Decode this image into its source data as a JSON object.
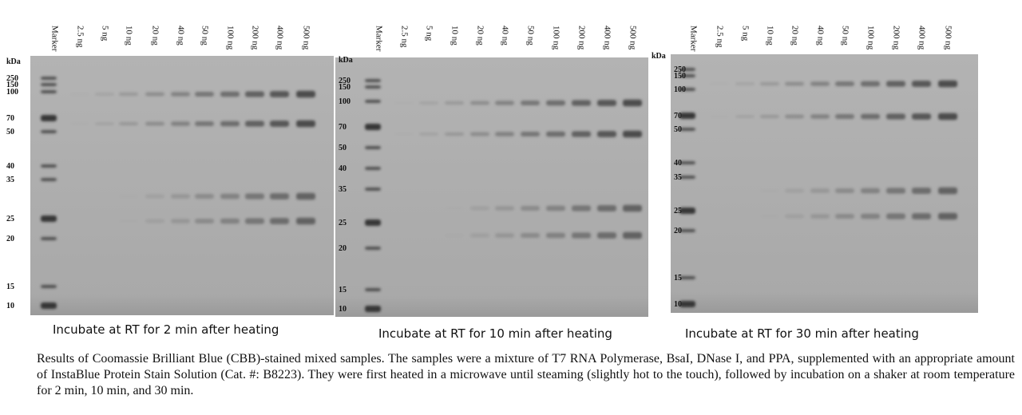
{
  "panels": [
    {
      "lanes": [
        "Marker",
        "2.5 ng",
        "5 ng",
        "10 ng",
        "20 ng",
        "40 ng",
        "50 ng",
        "100 ng",
        "200 ng",
        "400 ng",
        "500 ng"
      ],
      "unit": "kDa",
      "markers": [
        "250",
        "150",
        "100",
        "70",
        "50",
        "40",
        "35",
        "25",
        "20",
        "15",
        "10"
      ],
      "caption": "Incubate at RT for 2 min after heating"
    },
    {
      "lanes": [
        "Marker",
        "2.5 ng",
        "5 ng",
        "10 ng",
        "20 ng",
        "40 ng",
        "50 ng",
        "100 ng",
        "200 ng",
        "400 ng",
        "500 ng"
      ],
      "unit": "kDa",
      "markers": [
        "250",
        "150",
        "100",
        "70",
        "50",
        "40",
        "35",
        "25",
        "20",
        "15",
        "10"
      ],
      "caption": "Incubate at RT for 10 min after heating"
    },
    {
      "lanes": [
        "Marker",
        "2.5 ng",
        "5 ng",
        "10 ng",
        "20 ng",
        "40 ng",
        "50 ng",
        "100 ng",
        "200 ng",
        "400 ng",
        "500 ng"
      ],
      "unit": "kDa",
      "markers": [
        "250",
        "150",
        "100",
        "70",
        "50",
        "40",
        "35",
        "25",
        "20",
        "15",
        "10"
      ],
      "caption": "Incubate at RT for 30 min after heating"
    }
  ],
  "legend": "Results of Coomassie Brilliant Blue (CBB)-stained mixed samples. The samples were a mixture of T7 RNA Polymerase, BsaI, DNase I, and PPA, supplemented with an appropriate amount of InstaBlue Protein Stain Solution (Cat. #: B8223). They were first heated in a microwave until steaming (slightly hot to the touch), followed by incubation on a shaker at room temperature for 2 min, 10 min, and 30 min."
}
